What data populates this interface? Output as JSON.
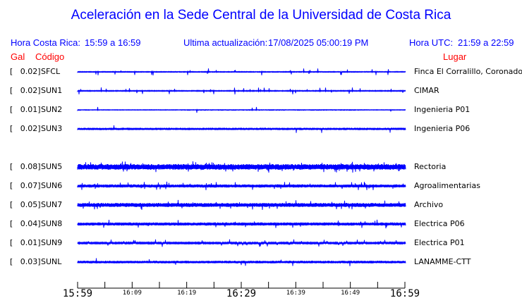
{
  "title": "Aceleración en la Sede Central de la Universidad de Costa Rica",
  "header": {
    "cr_label": "Hora Costa Rica:",
    "cr_range": "15:59 a 16:59",
    "update_label": "Ultima actualización:",
    "update_value": "17/08/2025 05:00:19 PM",
    "utc_label": "Hora UTC:",
    "utc_range": "21:59 a 22:59"
  },
  "columns": {
    "gal": "Gal",
    "code": "Código",
    "place": "Lugar"
  },
  "colors": {
    "trace": "#0000ff",
    "header": "#0000ff",
    "column_header": "#ff0000"
  },
  "chart_data": {
    "type": "line",
    "title": "Aceleración en la Sede Central de la Universidad de Costa Rica",
    "x_range": [
      "15:59",
      "16:59"
    ],
    "x_ticks": [
      "15:59",
      "16:09",
      "16:19",
      "16:29",
      "16:39",
      "16:49",
      "16:59"
    ],
    "grid": false,
    "series": [
      {
        "gal": "[   0.02]",
        "name": "SFCL",
        "place": "Finca El Corralillo, Coronado"
      },
      {
        "gal": "[   0.02]",
        "name": "SUN1",
        "place": "CIMAR"
      },
      {
        "gal": "[   0.01]",
        "name": "SUN2",
        "place": "Ingenieria P01"
      },
      {
        "gal": "[   0.02]",
        "name": "SUN3",
        "place": "Ingenieria P06"
      },
      null,
      {
        "gal": "[   0.08]",
        "name": "SUN5",
        "place": "Rectoria"
      },
      {
        "gal": "[   0.07]",
        "name": "SUN6",
        "place": "Agroalimentarias"
      },
      {
        "gal": "[   0.05]",
        "name": "SUN7",
        "place": "Archivo"
      },
      {
        "gal": "[   0.04]",
        "name": "SUN8",
        "place": "Electrica P06"
      },
      {
        "gal": "[   0.01]",
        "name": "SUN9",
        "place": "Electrica P01"
      },
      {
        "gal": "[   0.03]",
        "name": "SUNL",
        "place": "LANAMME-CTT"
      }
    ]
  }
}
